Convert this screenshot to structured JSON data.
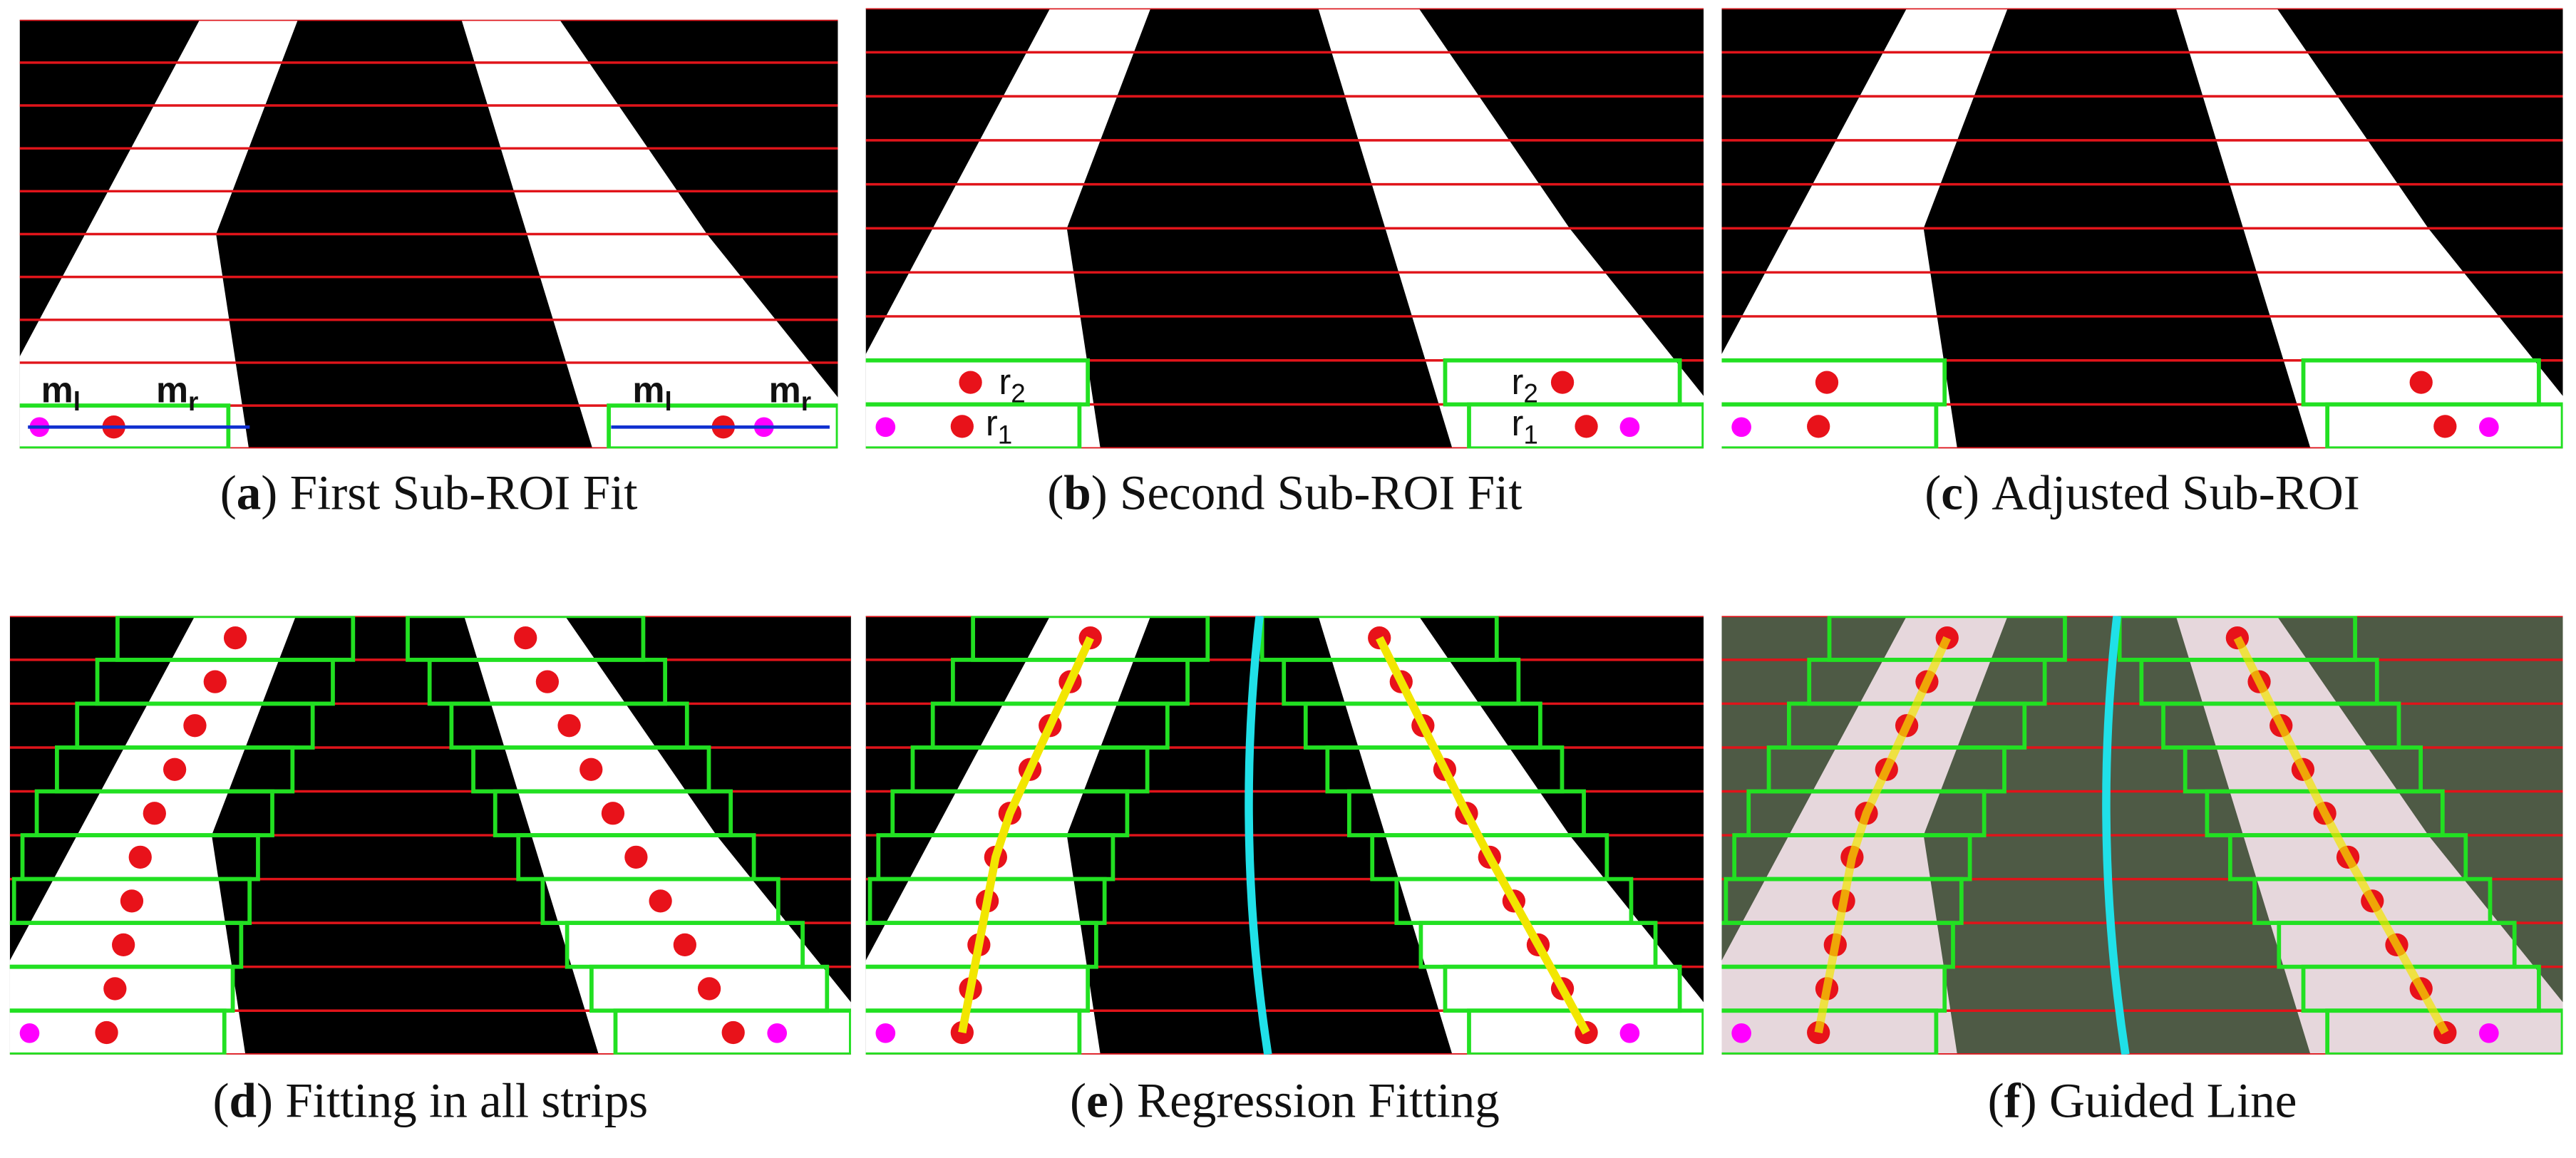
{
  "caption_brackets": [
    "(",
    ")"
  ],
  "panels": [
    {
      "letter": "a",
      "caption": "First Sub-ROI Fit",
      "labels": [
        {
          "text": "m",
          "sub": "l"
        },
        {
          "text": "m",
          "sub": "r"
        },
        {
          "text": "m",
          "sub": "l"
        },
        {
          "text": "m",
          "sub": "r"
        }
      ]
    },
    {
      "letter": "b",
      "caption": "Second Sub-ROI Fit",
      "labels": [
        {
          "text": "r",
          "sub": "2"
        },
        {
          "text": "r",
          "sub": "1"
        },
        {
          "text": "r",
          "sub": "2"
        },
        {
          "text": "r",
          "sub": "1"
        }
      ]
    },
    {
      "letter": "c",
      "caption": "Adjusted Sub-ROI",
      "labels": []
    },
    {
      "letter": "d",
      "caption": "Fitting in all strips",
      "labels": []
    },
    {
      "letter": "e",
      "caption": "Regression Fitting",
      "labels": []
    },
    {
      "letter": "f",
      "caption": "Guided Line",
      "labels": []
    }
  ]
}
